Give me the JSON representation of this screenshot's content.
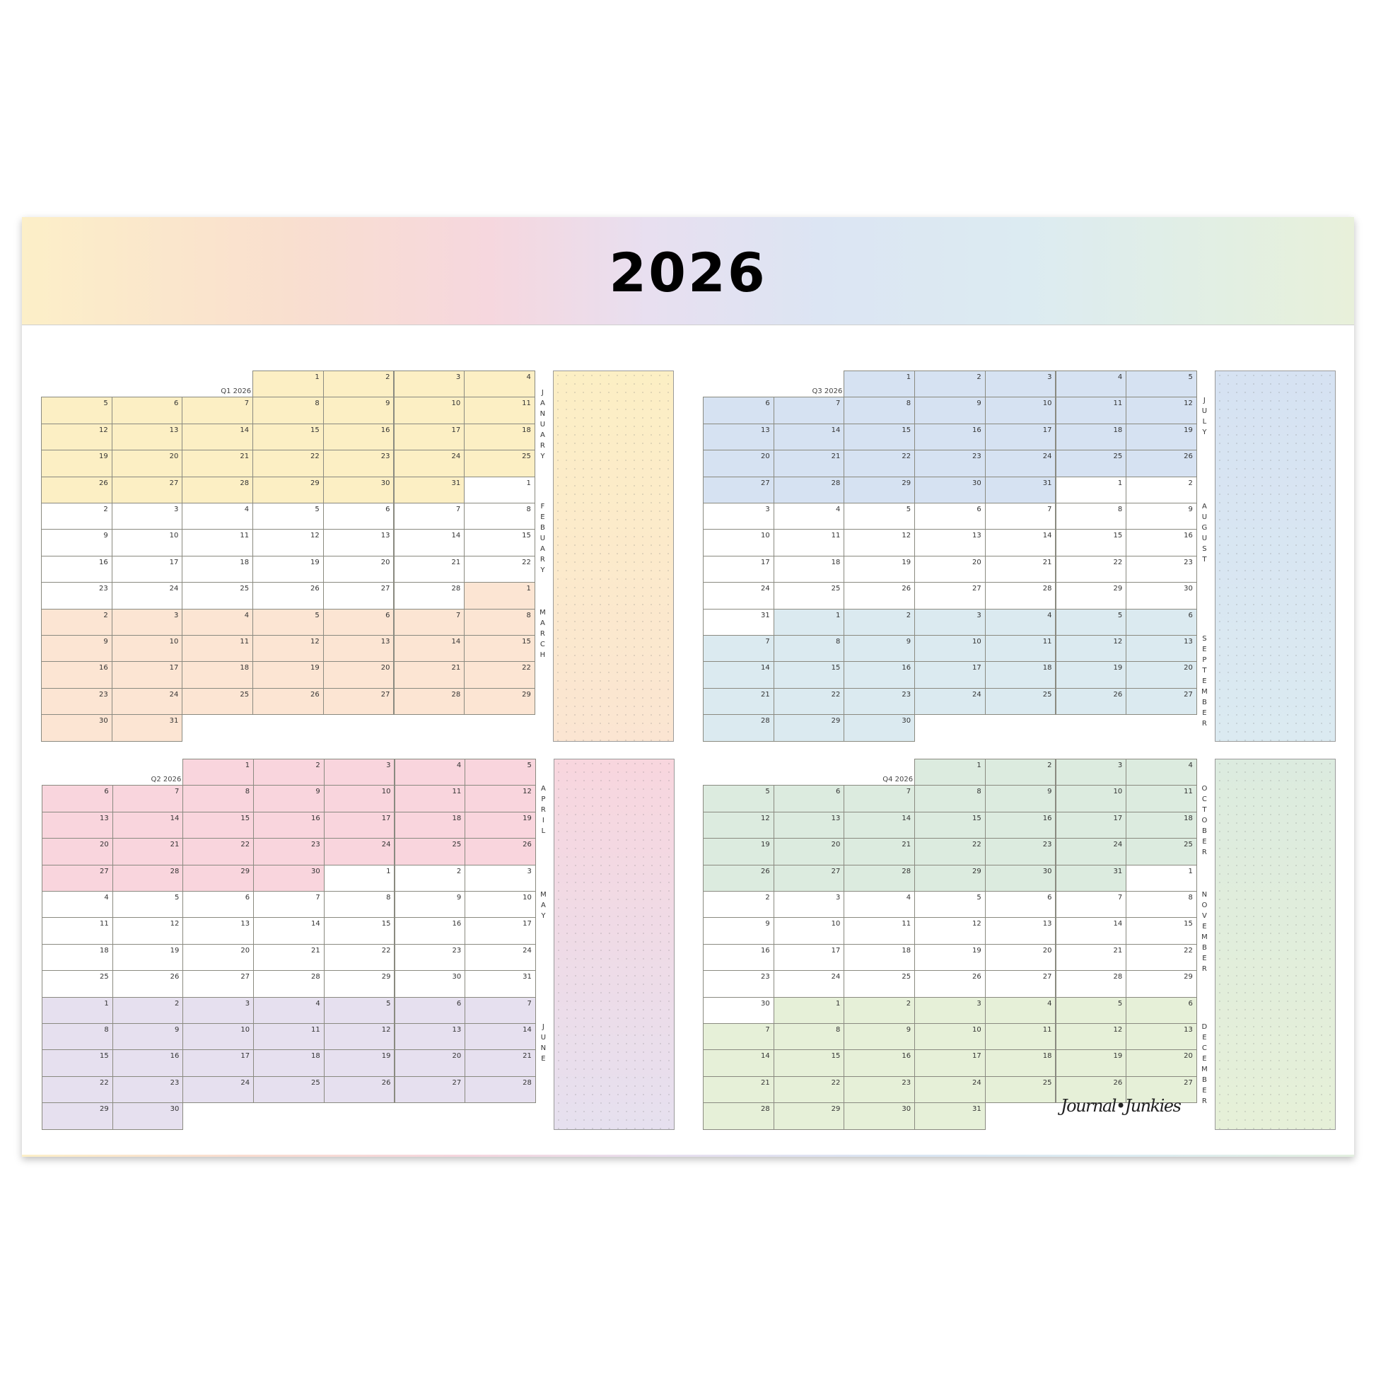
{
  "title": "2026",
  "year": 2026,
  "logo_text": "Journal•Junkies",
  "quarters": [
    {
      "label": "Q1 2026",
      "notes_colors": [
        "#fcefc4",
        "#fbe5d2"
      ],
      "months": [
        {
          "name": "JANUARY",
          "days": 31,
          "color": "#fcefc4"
        },
        {
          "name": "FEBUARY",
          "days": 28,
          "color": "#ffffff"
        },
        {
          "name": "MARCH",
          "days": 31,
          "color": "#fce5d3"
        }
      ]
    },
    {
      "label": "Q2 2026",
      "notes_colors": [
        "#f8d6de",
        "#e6e0ef"
      ],
      "months": [
        {
          "name": "APRIL",
          "days": 30,
          "color": "#f9d5dd"
        },
        {
          "name": "MAY",
          "days": 31,
          "color": "#ffffff"
        },
        {
          "name": "JUNE",
          "days": 30,
          "color": "#e6e0ef"
        }
      ]
    },
    {
      "label": "Q3 2026",
      "notes_colors": [
        "#d6e2f2",
        "#dbeaf1"
      ],
      "months": [
        {
          "name": "JULY",
          "days": 31,
          "color": "#d6e2f2"
        },
        {
          "name": "AUGUST",
          "days": 31,
          "color": "#ffffff"
        },
        {
          "name": "SEPTEMBER",
          "days": 30,
          "color": "#dbeaf0"
        }
      ]
    },
    {
      "label": "Q4 2026",
      "notes_colors": [
        "#dcebdf",
        "#e6f0d8"
      ],
      "months": [
        {
          "name": "OCTOBER",
          "days": 31,
          "color": "#dcebdf"
        },
        {
          "name": "NOVEMBER",
          "days": 30,
          "color": "#ffffff"
        },
        {
          "name": "DECEMBER",
          "days": 31,
          "color": "#e6f0d8"
        }
      ]
    }
  ]
}
